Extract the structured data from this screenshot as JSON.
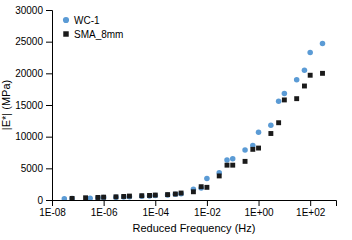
{
  "chart_data": {
    "type": "scatter",
    "xlabel": "Reduced Frequency (Hz)",
    "ylabel": "|E*| (MPa)",
    "log": "x",
    "legend": "upper left",
    "grid": false,
    "xlim": [
      1e-08,
      1000.0
    ],
    "xticks": [
      {
        "value": 1e-08,
        "label": "1E-08"
      },
      {
        "value": 1e-06,
        "label": "1E-06"
      },
      {
        "value": 0.0001,
        "label": "1E-04"
      },
      {
        "value": 0.01,
        "label": "1E-02"
      },
      {
        "value": 1,
        "label": "1E+00"
      },
      {
        "value": 100,
        "label": "1E+02"
      }
    ],
    "ylim": [
      0,
      30000
    ],
    "yticks": [
      0,
      5000,
      10000,
      15000,
      20000,
      25000,
      30000
    ],
    "series": [
      {
        "name": "WC-1",
        "color": "#5b9bd5",
        "marker": "circle",
        "x": [
          3e-08,
          6e-08,
          3e-07,
          6e-07,
          1e-06,
          3e-06,
          6e-06,
          1e-05,
          3e-05,
          6e-05,
          0.0001,
          0.0003,
          0.0006,
          0.001,
          0.003,
          0.006,
          0.01,
          0.03,
          0.06,
          0.1,
          0.3,
          0.6,
          1.0,
          3.0,
          6.0,
          10.0,
          30.0,
          60.0,
          100.0,
          300.0
        ],
        "values": [
          200,
          250,
          280,
          350,
          380,
          420,
          480,
          520,
          580,
          620,
          700,
          800,
          900,
          1000,
          1700,
          1900,
          3400,
          4300,
          6300,
          6500,
          7900,
          8600,
          10700,
          11800,
          15600,
          16800,
          19000,
          20500,
          23300,
          24700
        ]
      },
      {
        "name": "SMA_8mm",
        "color": "#1a1a1a",
        "marker": "square",
        "x": [
          6e-08,
          2e-07,
          6e-07,
          1e-06,
          3e-06,
          6e-06,
          1e-05,
          3e-05,
          6e-05,
          0.0001,
          0.0003,
          0.0006,
          0.001,
          0.003,
          0.006,
          0.01,
          0.03,
          0.06,
          0.1,
          0.3,
          0.6,
          1.0,
          3.0,
          6.0,
          10.0,
          30.0,
          60.0,
          100.0,
          300.0
        ],
        "values": [
          250,
          350,
          400,
          450,
          500,
          560,
          620,
          680,
          720,
          780,
          850,
          950,
          1100,
          1300,
          2100,
          2000,
          3800,
          5500,
          5500,
          6100,
          8000,
          8200,
          10500,
          12200,
          15800,
          16000,
          18000,
          19700,
          20000
        ]
      }
    ]
  }
}
